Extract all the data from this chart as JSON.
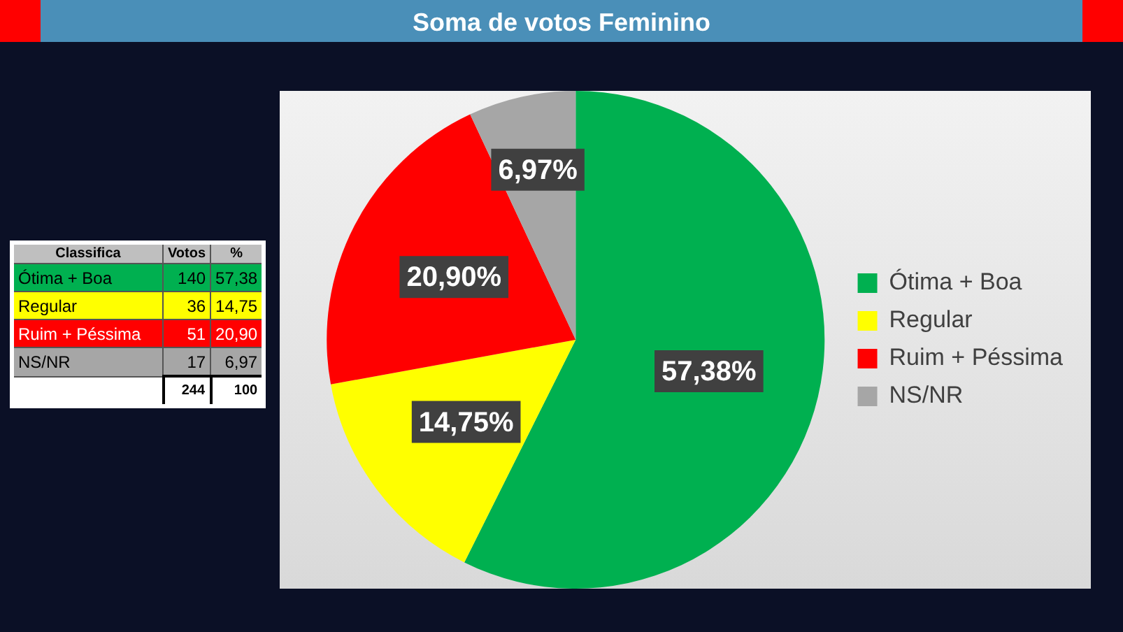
{
  "chart_data": {
    "type": "pie",
    "title": "Soma de votos Feminino",
    "categories": [
      "Ótima + Boa",
      "Regular",
      "Ruim + Péssima",
      "NS/NR"
    ],
    "values": [
      57.38,
      14.75,
      20.9,
      6.97
    ],
    "colors": [
      "#00b050",
      "#ffff00",
      "#ff0000",
      "#a6a6a6"
    ],
    "value_labels": [
      "57,38%",
      "14,75%",
      "20,90%",
      "6,97%"
    ],
    "legend": "right",
    "annotations": [
      "Classifica",
      "Votos",
      "%",
      "140",
      "36",
      "51",
      "17",
      "57,38",
      "14,75",
      "20,90",
      "6,97",
      "244",
      "100"
    ]
  }
}
